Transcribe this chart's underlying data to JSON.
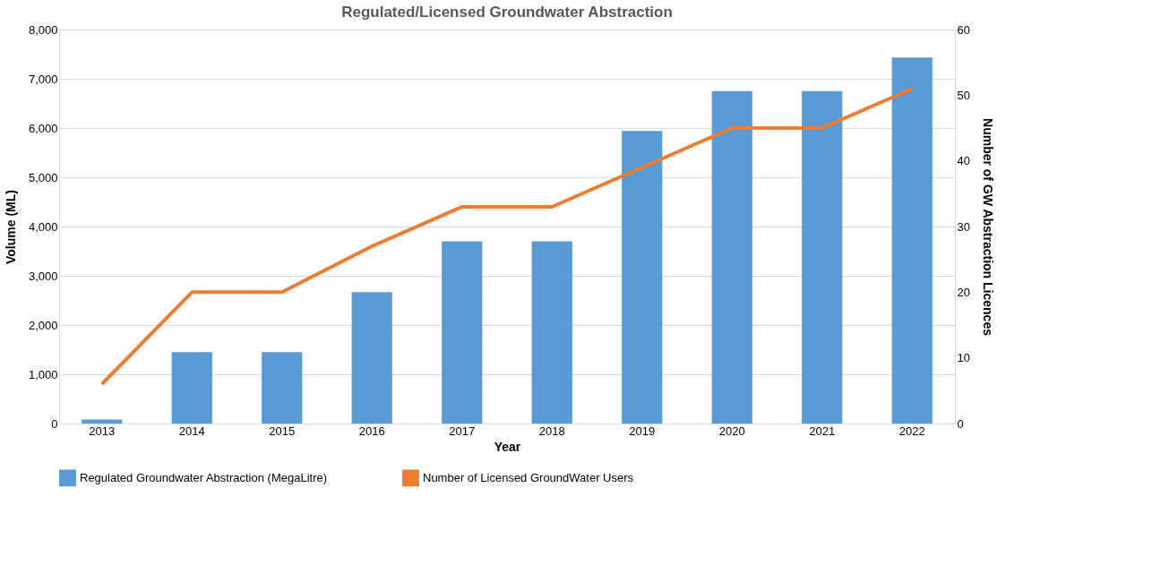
{
  "chart_data": {
    "type": "bar",
    "title": "Regulated/Licensed Groundwater Abstraction",
    "xlabel": "Year",
    "ylabel": "Volume (ML)",
    "y2label": "Number of GW Abstraction Licences",
    "categories": [
      "2013",
      "2014",
      "2015",
      "2016",
      "2017",
      "2018",
      "2019",
      "2020",
      "2021",
      "2022"
    ],
    "series": [
      {
        "name": "Regulated Groundwater Abstraction (MegaLitre)",
        "color": "#5b9bd5",
        "values": [
          80,
          1450,
          1450,
          2670,
          3700,
          3700,
          5940,
          6750,
          6750,
          7430
        ]
      },
      {
        "name": "Number of Licensed GroundWater Users",
        "type": "line",
        "axis": "y2",
        "color": "#ed7d31",
        "values": [
          6,
          20,
          20,
          27,
          33,
          33,
          39,
          45,
          45,
          51
        ]
      }
    ],
    "ylim": [
      0,
      8000
    ],
    "yticks": [
      0,
      {
        "value": 1000,
        "label": "1,000"
      },
      {
        "value": 2000,
        "label": "2,000"
      },
      {
        "value": 3000,
        "label": "3,000"
      },
      {
        "value": 4000,
        "label": "4,000"
      },
      {
        "value": 5000,
        "label": "5,000"
      },
      {
        "value": 6000,
        "label": "6,000"
      },
      {
        "value": 7000,
        "label": "7,000"
      },
      {
        "value": 8000,
        "label": "8,000"
      }
    ],
    "y2lim": [
      0,
      60
    ],
    "y2ticks": [
      0,
      10,
      20,
      30,
      40,
      50,
      60
    ],
    "grid": "y",
    "legend": "bottom",
    "marker": "none",
    "line_style": "solid"
  }
}
